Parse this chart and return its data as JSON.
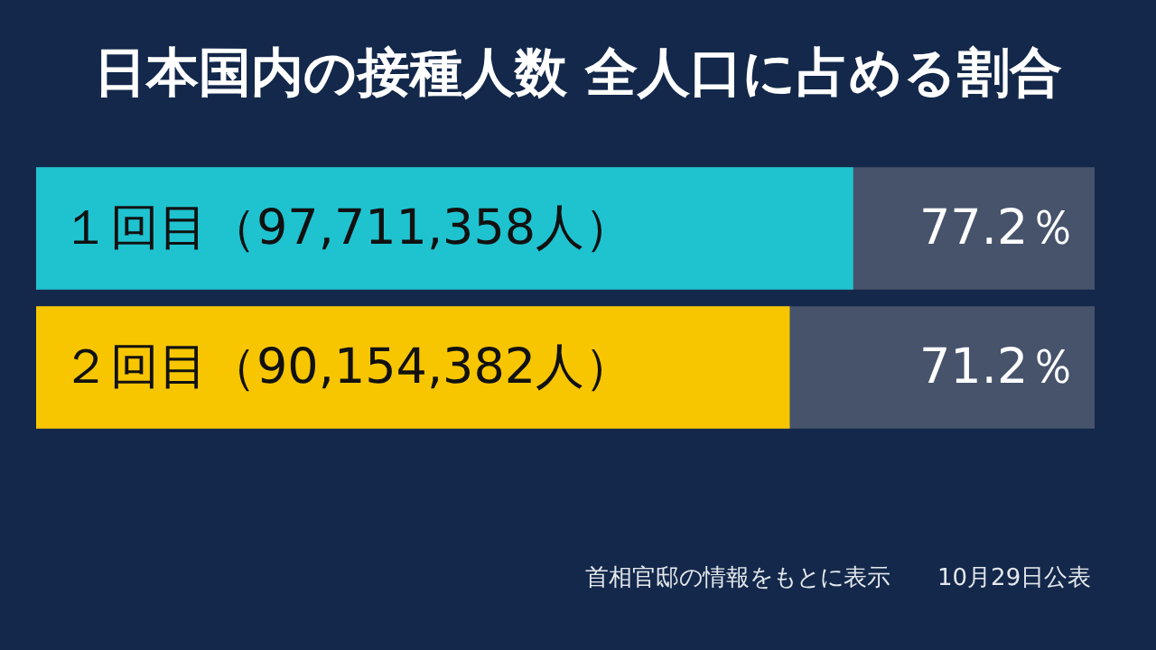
{
  "chart_data": {
    "type": "bar",
    "orientation": "horizontal",
    "title": "日本国内の接種人数 全人口に占める割合",
    "categories": [
      "１回目（97,711,358人）",
      "２回目（90,154,382人）"
    ],
    "values": [
      77.2,
      71.2
    ],
    "colors": [
      "#1fc3cf",
      "#f7c600"
    ],
    "value_labels": [
      "77.2％",
      "71.2％"
    ],
    "xlim": [
      0,
      100
    ],
    "annotations": [
      "首相官邸の情報をもとに表示",
      "10月29日公表"
    ]
  }
}
